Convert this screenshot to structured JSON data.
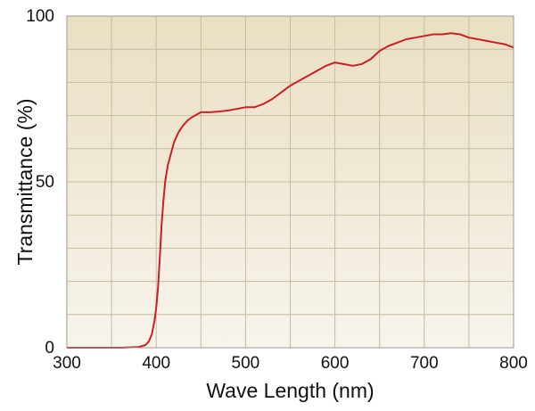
{
  "chart_data": {
    "type": "line",
    "title": "",
    "xlabel": "Wave Length (nm)",
    "ylabel": "Transmittance (%)",
    "xlim": [
      300,
      800
    ],
    "ylim": [
      0,
      100
    ],
    "x_ticks": [
      "300",
      "400",
      "500",
      "600",
      "700",
      "800"
    ],
    "y_ticks": [
      "0",
      "50",
      "100"
    ],
    "grid": true,
    "legend": "none",
    "colors": {
      "line": "#cc1f24",
      "grid": "#c8bc9e",
      "frame": "#9a9a9a",
      "bg_top": "#e9dfc2",
      "bg_bottom": "#f7f4ec"
    },
    "series": [
      {
        "x": [
          300,
          320,
          340,
          360,
          380,
          388,
          392,
          395,
          398,
          400,
          402,
          404,
          406,
          408,
          410,
          413,
          416,
          420,
          425,
          430,
          435,
          440,
          450,
          460,
          470,
          480,
          490,
          500,
          510,
          520,
          530,
          540,
          550,
          560,
          570,
          580,
          590,
          600,
          610,
          620,
          630,
          640,
          650,
          660,
          670,
          680,
          690,
          700,
          710,
          720,
          730,
          740,
          750,
          760,
          770,
          780,
          790,
          800
        ],
        "y": [
          0,
          0,
          0,
          0,
          0.2,
          0.8,
          2,
          4,
          8,
          12,
          18,
          27,
          37,
          44,
          50,
          55,
          58,
          62,
          65,
          67,
          68.5,
          69.5,
          71,
          71,
          71.2,
          71.5,
          72,
          72.5,
          72.5,
          73.5,
          75,
          77,
          79,
          80.5,
          82,
          83.5,
          85,
          86,
          85.5,
          85,
          85.5,
          87,
          89.5,
          91,
          92,
          93,
          93.5,
          94,
          94.5,
          94.5,
          94.8,
          94.5,
          93.5,
          93,
          92.5,
          92,
          91.5,
          90.5
        ]
      }
    ]
  }
}
